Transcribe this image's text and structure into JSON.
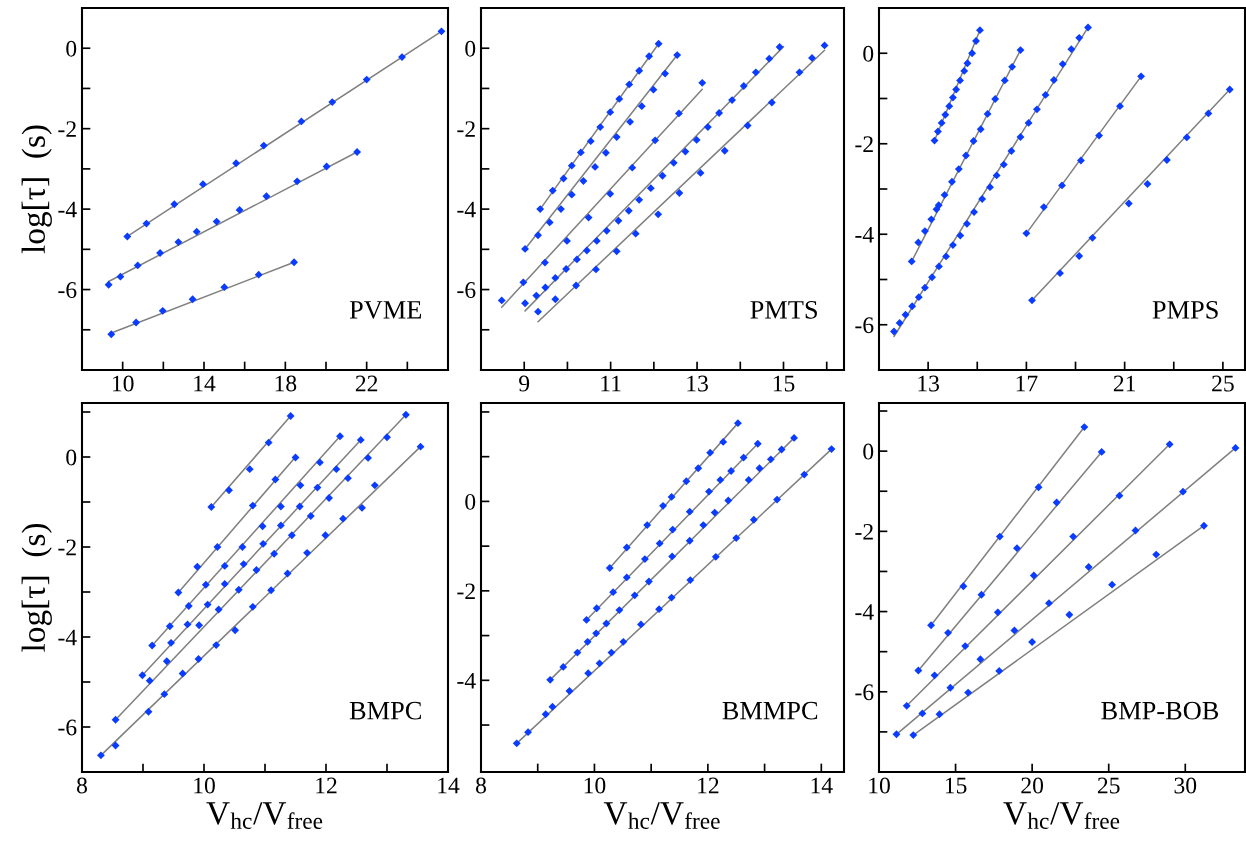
{
  "chart_data": [
    {
      "type": "scatter",
      "ylabel": "log[τ]  (s)",
      "annotations": [
        "PVME"
      ],
      "marker": "diamond",
      "xlim": [
        8,
        26
      ],
      "ylim": [
        -8,
        1
      ],
      "xticks": [
        10,
        {
          "value": 12,
          "label": null
        },
        14,
        {
          "value": 16,
          "label": null
        },
        18,
        {
          "value": 20,
          "label": null
        },
        22,
        {
          "value": 24,
          "label": null
        }
      ],
      "yticks": [
        {
          "value": -7,
          "label": null
        },
        -6,
        {
          "value": -5,
          "label": null
        },
        -4,
        {
          "value": -3,
          "label": null
        },
        -2,
        {
          "value": -1,
          "label": null
        },
        0
      ],
      "series": [
        {
          "type": "line",
          "marker": "none",
          "color": "#808080",
          "x": [
            10.23,
            25.68
          ],
          "values": [
            -4.68,
            0.42
          ]
        },
        {
          "type": "line",
          "marker": "none",
          "color": "#808080",
          "x": [
            9.31,
            21.53
          ],
          "values": [
            -5.8,
            -2.58
          ]
        },
        {
          "type": "line",
          "marker": "none",
          "color": "#808080",
          "x": [
            9.44,
            18.43
          ],
          "values": [
            -7.08,
            -5.32
          ]
        },
        {
          "color": "#0a3cff",
          "x": [
            10.23,
            11.17,
            12.54,
            13.95,
            15.58,
            16.94,
            18.79,
            20.31,
            22.0,
            23.74,
            25.68
          ],
          "values": [
            -4.68,
            -4.36,
            -3.88,
            -3.38,
            -2.86,
            -2.42,
            -1.82,
            -1.34,
            -0.78,
            -0.22,
            0.42
          ]
        },
        {
          "color": "#0a3cff",
          "x": [
            9.31,
            9.89,
            10.74,
            11.84,
            12.74,
            13.64,
            14.62,
            15.75,
            17.07,
            18.58,
            20.03,
            21.53
          ],
          "values": [
            -5.88,
            -5.68,
            -5.4,
            -5.09,
            -4.82,
            -4.56,
            -4.31,
            -4.02,
            -3.68,
            -3.31,
            -2.94,
            -2.58
          ]
        },
        {
          "color": "#0a3cff",
          "x": [
            9.44,
            10.66,
            11.97,
            13.44,
            15.0,
            16.69,
            18.43
          ],
          "values": [
            -7.11,
            -6.82,
            -6.53,
            -6.24,
            -5.94,
            -5.63,
            -5.32
          ]
        }
      ]
    },
    {
      "type": "scatter",
      "annotations": [
        "PMTS"
      ],
      "marker": "diamond",
      "xlim": [
        8,
        16.4
      ],
      "ylim": [
        -8,
        1
      ],
      "xticks": [
        9,
        {
          "value": 10,
          "label": null
        },
        11,
        {
          "value": 12,
          "label": null
        },
        13,
        {
          "value": 14,
          "label": null
        },
        15,
        {
          "value": 16,
          "label": null
        }
      ],
      "yticks": [
        {
          "value": -7,
          "label": null
        },
        -6,
        {
          "value": -5,
          "label": null
        },
        -4,
        {
          "value": -3,
          "label": null
        },
        -2,
        {
          "value": -1,
          "label": null
        },
        0
      ],
      "series": [
        {
          "type": "line",
          "marker": "none",
          "color": "#808080",
          "x": [
            9.37,
            12.11
          ],
          "values": [
            -4.0,
            0.11
          ]
        },
        {
          "type": "line",
          "marker": "none",
          "color": "#808080",
          "x": [
            9.02,
            12.54
          ],
          "values": [
            -4.99,
            -0.17
          ]
        },
        {
          "type": "line",
          "marker": "none",
          "color": "#808080",
          "x": [
            8.48,
            13.12
          ],
          "values": [
            -6.44,
            -1.02
          ]
        },
        {
          "type": "line",
          "marker": "none",
          "color": "#808080",
          "x": [
            9.02,
            15.0
          ],
          "values": [
            -6.53,
            0.04
          ]
        },
        {
          "type": "line",
          "marker": "none",
          "color": "#808080",
          "x": [
            9.32,
            15.95
          ],
          "values": [
            -6.8,
            -0.05
          ]
        },
        {
          "color": "#0a3cff",
          "x": [
            9.37,
            9.66,
            9.91,
            10.1,
            10.31,
            10.54,
            10.76,
            10.99,
            11.2,
            11.43,
            11.66,
            11.89,
            12.11
          ],
          "values": [
            -4.0,
            -3.54,
            -3.24,
            -2.92,
            -2.59,
            -2.31,
            -1.96,
            -1.59,
            -1.26,
            -0.9,
            -0.56,
            -0.2,
            0.11
          ]
        },
        {
          "color": "#0a3cff",
          "x": [
            9.02,
            9.32,
            9.59,
            9.85,
            10.1,
            10.37,
            10.64,
            10.89,
            11.14,
            11.45,
            11.72,
            11.99,
            12.26,
            12.54
          ],
          "values": [
            -4.99,
            -4.65,
            -4.33,
            -4.0,
            -3.64,
            -3.3,
            -2.95,
            -2.6,
            -2.21,
            -1.83,
            -1.44,
            -1.03,
            -0.63,
            -0.17
          ]
        },
        {
          "color": "#0a3cff",
          "x": [
            8.48,
            8.98,
            9.48,
            9.99,
            10.49,
            10.99,
            11.5,
            12.03,
            12.58,
            13.12
          ],
          "values": [
            -6.27,
            -5.82,
            -5.33,
            -4.79,
            -4.21,
            -3.62,
            -2.97,
            -2.29,
            -1.62,
            -0.86
          ]
        },
        {
          "color": "#0a3cff",
          "x": [
            9.02,
            9.28,
            9.49,
            9.72,
            9.97,
            10.22,
            10.45,
            10.68,
            10.91,
            11.18,
            11.42,
            11.66,
            11.93,
            12.2,
            12.46,
            12.73,
            12.99,
            13.25,
            13.51,
            13.81,
            14.08,
            14.36,
            14.67,
            14.91
          ],
          "values": [
            -6.34,
            -6.15,
            -5.95,
            -5.71,
            -5.49,
            -5.25,
            -5.03,
            -4.79,
            -4.54,
            -4.29,
            -4.04,
            -3.77,
            -3.48,
            -3.17,
            -2.85,
            -2.57,
            -2.28,
            -1.96,
            -1.61,
            -1.29,
            -0.94,
            -0.6,
            -0.26,
            0.03
          ]
        },
        {
          "color": "#0a3cff",
          "x": [
            9.32,
            9.72,
            10.2,
            10.66,
            11.14,
            11.58,
            12.1,
            12.59,
            13.08,
            13.64,
            14.17,
            14.73,
            15.37,
            15.66,
            15.95
          ],
          "values": [
            -6.55,
            -6.24,
            -5.9,
            -5.5,
            -5.05,
            -4.61,
            -4.13,
            -3.6,
            -3.1,
            -2.55,
            -1.92,
            -1.35,
            -0.6,
            -0.24,
            0.07
          ]
        }
      ]
    },
    {
      "type": "scatter",
      "annotations": [
        "PMPS"
      ],
      "marker": "diamond",
      "xlim": [
        11,
        25.9
      ],
      "ylim": [
        -7,
        1
      ],
      "xticks": [
        13,
        {
          "value": 15,
          "label": null
        },
        17,
        {
          "value": 19,
          "label": null
        },
        21,
        {
          "value": 23,
          "label": null
        },
        25
      ],
      "yticks": [
        -6,
        {
          "value": -5,
          "label": null
        },
        -4,
        {
          "value": -3,
          "label": null
        },
        -2,
        {
          "value": -1,
          "label": null
        },
        0
      ],
      "series": [
        {
          "type": "line",
          "marker": "none",
          "color": "#808080",
          "x": [
            13.26,
            15.11
          ],
          "values": [
            -1.93,
            0.51
          ]
        },
        {
          "type": "line",
          "marker": "none",
          "color": "#808080",
          "x": [
            12.33,
            16.76
          ],
          "values": [
            -4.6,
            0.07
          ]
        },
        {
          "type": "line",
          "marker": "none",
          "color": "#808080",
          "x": [
            11.61,
            19.51
          ],
          "values": [
            -6.26,
            0.57
          ]
        },
        {
          "type": "line",
          "marker": "none",
          "color": "#808080",
          "x": [
            17.0,
            21.67
          ],
          "values": [
            -3.98,
            -0.51
          ]
        },
        {
          "type": "line",
          "marker": "none",
          "color": "#808080",
          "x": [
            17.23,
            25.28
          ],
          "values": [
            -5.46,
            -0.8
          ]
        },
        {
          "color": "#0a3cff",
          "x": [
            13.26,
            13.4,
            13.55,
            13.7,
            13.86,
            14.01,
            14.14,
            14.3,
            14.47,
            14.6,
            14.79,
            14.95,
            15.11
          ],
          "values": [
            -1.93,
            -1.73,
            -1.54,
            -1.36,
            -1.17,
            -0.98,
            -0.8,
            -0.6,
            -0.39,
            -0.22,
            0.0,
            0.27,
            0.51
          ]
        },
        {
          "color": "#0a3cff",
          "x": [
            12.33,
            12.6,
            12.87,
            13.13,
            13.34,
            13.43,
            13.67,
            13.97,
            14.25,
            14.54,
            14.85,
            15.14,
            15.42,
            15.73,
            16.12,
            16.42,
            16.76
          ],
          "values": [
            -4.6,
            -4.18,
            -3.93,
            -3.67,
            -3.45,
            -3.36,
            -3.13,
            -2.84,
            -2.56,
            -2.26,
            -1.94,
            -1.68,
            -1.34,
            -1.01,
            -0.6,
            -0.3,
            0.07
          ]
        },
        {
          "color": "#0a3cff",
          "x": [
            11.61,
            11.84,
            12.08,
            12.35,
            12.62,
            12.87,
            13.16,
            13.44,
            13.73,
            14.01,
            14.31,
            14.58,
            14.87,
            15.2,
            15.52,
            15.79,
            16.08,
            16.39,
            16.76,
            17.09,
            17.43,
            17.78,
            18.12,
            18.48,
            18.83,
            19.15,
            19.51
          ],
          "values": [
            -6.15,
            -5.96,
            -5.78,
            -5.59,
            -5.39,
            -5.18,
            -4.95,
            -4.71,
            -4.49,
            -4.24,
            -4.03,
            -3.77,
            -3.51,
            -3.22,
            -2.96,
            -2.7,
            -2.46,
            -2.16,
            -1.85,
            -1.54,
            -1.24,
            -0.92,
            -0.59,
            -0.24,
            0.09,
            0.34,
            0.57
          ]
        },
        {
          "color": "#0a3cff",
          "x": [
            17.0,
            17.71,
            18.45,
            19.22,
            19.96,
            20.81,
            21.67
          ],
          "values": [
            -3.98,
            -3.4,
            -2.92,
            -2.37,
            -1.82,
            -1.17,
            -0.51
          ]
        },
        {
          "color": "#0a3cff",
          "x": [
            17.23,
            18.37,
            19.15,
            19.69,
            21.17,
            21.93,
            22.72,
            23.53,
            24.41,
            25.28
          ],
          "values": [
            -5.46,
            -4.86,
            -4.48,
            -4.08,
            -3.32,
            -2.89,
            -2.36,
            -1.86,
            -1.33,
            -0.8
          ]
        }
      ]
    },
    {
      "type": "scatter",
      "ylabel": "log[τ]  (s)",
      "xlabel": "V$_{hc}$/V$_{free}$",
      "annotations": [
        "BMPC"
      ],
      "marker": "diamond",
      "xlim": [
        8,
        14
      ],
      "ylim": [
        -7,
        1.2
      ],
      "xticks": [
        8,
        {
          "value": 9,
          "label": null
        },
        10,
        {
          "value": 11,
          "label": null
        },
        12,
        {
          "value": 13,
          "label": null
        },
        14
      ],
      "yticks": [
        -6,
        {
          "value": -5,
          "label": null
        },
        -4,
        {
          "value": -3,
          "label": null
        },
        -2,
        {
          "value": -1,
          "label": null
        },
        0,
        {
          "value": 1,
          "label": null
        }
      ],
      "series": [
        {
          "type": "line",
          "marker": "none",
          "color": "#808080",
          "x": [
            10.12,
            11.42
          ],
          "values": [
            -1.11,
            0.91
          ]
        },
        {
          "type": "line",
          "marker": "none",
          "color": "#808080",
          "x": [
            9.58,
            11.5
          ],
          "values": [
            -3.01,
            0.0
          ]
        },
        {
          "type": "line",
          "marker": "none",
          "color": "#808080",
          "x": [
            9.15,
            12.23
          ],
          "values": [
            -4.19,
            0.46
          ]
        },
        {
          "type": "line",
          "marker": "none",
          "color": "#808080",
          "x": [
            8.99,
            12.57
          ],
          "values": [
            -4.85,
            0.38
          ]
        },
        {
          "type": "line",
          "marker": "none",
          "color": "#808080",
          "x": [
            8.55,
            13.31
          ],
          "values": [
            -5.84,
            0.94
          ]
        },
        {
          "type": "line",
          "marker": "none",
          "color": "#808080",
          "x": [
            8.31,
            13.55
          ],
          "values": [
            -6.63,
            0.23
          ]
        },
        {
          "color": "#0a3cff",
          "x": [
            10.12,
            10.41,
            10.75,
            11.06,
            11.42
          ],
          "values": [
            -1.11,
            -0.74,
            -0.27,
            0.32,
            0.91
          ]
        },
        {
          "color": "#0a3cff",
          "x": [
            9.58,
            9.89,
            10.22,
            10.8,
            11.17,
            11.5
          ],
          "values": [
            -3.01,
            -2.44,
            -2.0,
            -1.08,
            -0.5,
            -0.01
          ]
        },
        {
          "color": "#0a3cff",
          "x": [
            9.15,
            9.44,
            9.75,
            10.03,
            10.34,
            10.63,
            10.96,
            11.26,
            11.58,
            11.9,
            12.23
          ],
          "values": [
            -4.19,
            -3.76,
            -3.31,
            -2.84,
            -2.42,
            -2.0,
            -1.54,
            -1.1,
            -0.63,
            -0.12,
            0.46
          ]
        },
        {
          "color": "#0a3cff",
          "x": [
            8.99,
            9.46,
            9.73,
            10.06,
            10.34,
            10.65,
            10.97,
            11.26,
            11.57,
            11.86,
            12.17,
            12.57
          ],
          "values": [
            -4.85,
            -4.13,
            -3.72,
            -3.28,
            -2.82,
            -2.38,
            -1.93,
            -1.52,
            -1.1,
            -0.68,
            -0.27,
            0.38
          ]
        },
        {
          "color": "#0a3cff",
          "x": [
            8.55,
            9.11,
            9.39,
            9.92,
            10.24,
            10.57,
            10.86,
            11.15,
            11.44,
            11.75,
            12.05,
            12.36,
            12.69,
            13.0,
            13.31
          ],
          "values": [
            -5.84,
            -4.97,
            -4.54,
            -3.74,
            -3.39,
            -2.95,
            -2.51,
            -2.15,
            -1.74,
            -1.31,
            -0.91,
            -0.47,
            -0.02,
            0.44,
            0.94
          ]
        },
        {
          "color": "#0a3cff",
          "x": [
            8.31,
            8.55,
            9.09,
            9.35,
            9.65,
            9.91,
            10.2,
            10.51,
            10.8,
            11.1,
            11.37,
            11.69,
            11.99,
            12.28,
            12.59,
            12.8,
            13.55
          ],
          "values": [
            -6.63,
            -6.41,
            -5.66,
            -5.27,
            -4.81,
            -4.49,
            -4.18,
            -3.85,
            -3.33,
            -2.96,
            -2.59,
            -2.13,
            -1.74,
            -1.37,
            -1.13,
            -0.63,
            0.23
          ]
        }
      ]
    },
    {
      "type": "scatter",
      "xlabel": "V$_{hc}$/V$_{free}$",
      "annotations": [
        "BMMPC"
      ],
      "marker": "diamond",
      "xlim": [
        8,
        14.4
      ],
      "ylim": [
        -6.05,
        2.2
      ],
      "xticks": [
        8,
        {
          "value": 9,
          "label": null
        },
        10,
        {
          "value": 11,
          "label": null
        },
        12,
        {
          "value": 13,
          "label": null
        },
        14
      ],
      "yticks": [
        {
          "value": -5,
          "label": null
        },
        -4,
        {
          "value": -3,
          "label": null
        },
        -2,
        {
          "value": -1,
          "label": null
        },
        0,
        {
          "value": 1,
          "label": null
        },
        {
          "value": 2,
          "label": null
        }
      ],
      "series": [
        {
          "type": "line",
          "marker": "none",
          "color": "#808080",
          "x": [
            10.27,
            12.53
          ],
          "values": [
            -1.49,
            1.75
          ]
        },
        {
          "type": "line",
          "marker": "none",
          "color": "#808080",
          "x": [
            9.86,
            12.88
          ],
          "values": [
            -2.65,
            1.29
          ]
        },
        {
          "type": "line",
          "marker": "none",
          "color": "#808080",
          "x": [
            9.22,
            13.52
          ],
          "values": [
            -3.99,
            1.42
          ]
        },
        {
          "type": "line",
          "marker": "none",
          "color": "#808080",
          "x": [
            8.63,
            14.18
          ],
          "values": [
            -5.41,
            1.17
          ]
        },
        {
          "color": "#0a3cff",
          "x": [
            10.27,
            10.57,
            10.93,
            11.21,
            11.36,
            11.62,
            11.83,
            12.04,
            12.27,
            12.53
          ],
          "values": [
            -1.49,
            -1.03,
            -0.53,
            -0.1,
            0.1,
            0.45,
            0.74,
            1.09,
            1.33,
            1.75
          ]
        },
        {
          "color": "#0a3cff",
          "x": [
            9.86,
            10.04,
            10.33,
            10.57,
            10.89,
            11.15,
            11.38,
            11.68,
            12.02,
            12.22,
            12.41,
            12.63,
            12.88
          ],
          "values": [
            -2.65,
            -2.39,
            -2.03,
            -1.7,
            -1.29,
            -0.94,
            -0.63,
            -0.23,
            0.22,
            0.48,
            0.68,
            0.98,
            1.29
          ]
        },
        {
          "color": "#0a3cff",
          "x": [
            9.22,
            9.45,
            9.7,
            9.88,
            10.03,
            10.21,
            10.44,
            10.71,
            10.96,
            11.37,
            11.68,
            11.92,
            12.12,
            12.36,
            12.72,
            12.91,
            13.11,
            13.3,
            13.52
          ],
          "values": [
            -3.99,
            -3.7,
            -3.38,
            -3.14,
            -2.95,
            -2.73,
            -2.43,
            -2.1,
            -1.79,
            -1.23,
            -0.88,
            -0.53,
            -0.25,
            0.02,
            0.48,
            0.74,
            0.94,
            1.16,
            1.42
          ]
        },
        {
          "color": "#0a3cff",
          "x": [
            8.63,
            8.83,
            9.14,
            9.26,
            9.56,
            9.89,
            10.09,
            10.3,
            10.51,
            10.82,
            11.14,
            11.36,
            11.69,
            12.14,
            12.5,
            12.81,
            13.22,
            13.7,
            14.18
          ],
          "values": [
            -5.41,
            -5.16,
            -4.76,
            -4.59,
            -4.24,
            -3.84,
            -3.62,
            -3.38,
            -3.14,
            -2.75,
            -2.41,
            -2.15,
            -1.76,
            -1.24,
            -0.82,
            -0.41,
            0.04,
            0.6,
            1.17
          ]
        }
      ]
    },
    {
      "type": "scatter",
      "xlabel": "V$_{hc}$/V$_{free}$",
      "annotations": [
        "BMP-BOB"
      ],
      "marker": "diamond",
      "xlim": [
        10,
        33.9
      ],
      "ylim": [
        -8,
        1.2
      ],
      "xticks": [
        10,
        15,
        20,
        25,
        30
      ],
      "yticks": [
        {
          "value": -7,
          "label": null
        },
        -6,
        {
          "value": -5,
          "label": null
        },
        -4,
        {
          "value": -3,
          "label": null
        },
        -2,
        {
          "value": -1,
          "label": null
        },
        0,
        {
          "value": 1,
          "label": null
        }
      ],
      "series": [
        {
          "type": "line",
          "marker": "none",
          "color": "#808080",
          "x": [
            13.4,
            23.41
          ],
          "values": [
            -4.34,
            0.6
          ]
        },
        {
          "type": "line",
          "marker": "none",
          "color": "#808080",
          "x": [
            12.57,
            24.54
          ],
          "values": [
            -5.47,
            -0.02
          ]
        },
        {
          "type": "line",
          "marker": "none",
          "color": "#808080",
          "x": [
            11.81,
            28.98
          ],
          "values": [
            -6.35,
            0.17
          ]
        },
        {
          "type": "line",
          "marker": "none",
          "color": "#808080",
          "x": [
            11.14,
            33.28
          ],
          "values": [
            -7.06,
            0.08
          ]
        },
        {
          "type": "line",
          "marker": "none",
          "color": "#808080",
          "x": [
            12.24,
            31.22
          ],
          "values": [
            -7.08,
            -1.86
          ]
        },
        {
          "color": "#0a3cff",
          "x": [
            13.4,
            15.51,
            17.89,
            20.42,
            23.41
          ],
          "values": [
            -4.34,
            -3.37,
            -2.13,
            -0.9,
            0.6
          ]
        },
        {
          "color": "#0a3cff",
          "x": [
            12.57,
            14.51,
            16.69,
            19.01,
            21.6,
            24.54
          ],
          "values": [
            -5.47,
            -4.53,
            -3.58,
            -2.42,
            -1.28,
            -0.02
          ]
        },
        {
          "color": "#0a3cff",
          "x": [
            11.81,
            13.63,
            15.63,
            17.76,
            20.11,
            22.68,
            25.7,
            28.98
          ],
          "values": [
            -6.35,
            -5.59,
            -4.86,
            -4.02,
            -3.1,
            -2.13,
            -1.11,
            0.17
          ]
        },
        {
          "color": "#0a3cff",
          "x": [
            11.14,
            12.83,
            14.66,
            16.62,
            18.84,
            21.1,
            23.69,
            26.75,
            29.85,
            33.28
          ],
          "values": [
            -7.06,
            -6.54,
            -5.9,
            -5.19,
            -4.47,
            -3.79,
            -2.89,
            -1.98,
            -1.01,
            0.08
          ]
        },
        {
          "color": "#0a3cff",
          "x": [
            12.24,
            13.95,
            15.82,
            17.85,
            20.0,
            22.43,
            25.22,
            28.1,
            31.22
          ],
          "values": [
            -7.08,
            -6.56,
            -6.02,
            -5.48,
            -4.76,
            -4.08,
            -3.33,
            -2.58,
            -1.86
          ]
        }
      ]
    }
  ]
}
